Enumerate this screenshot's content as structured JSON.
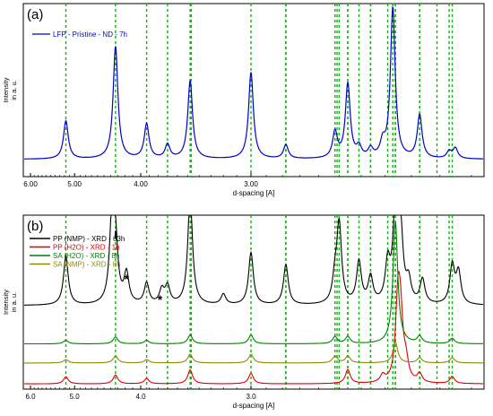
{
  "chart_data": [
    {
      "type": "line",
      "panel_label": "(a)",
      "xlabel": "d-spacing [A]",
      "ylabel_lines": [
        "Intensity",
        "in a. u."
      ],
      "x_ticks": [
        "6.00",
        "5.00",
        "4.00",
        "3.00"
      ],
      "x_tick_values": [
        6.0,
        5.0,
        4.0,
        3.0
      ],
      "scale": "reciprocal",
      "xlim": [
        6.0,
        2.0
      ],
      "ylim": [
        0,
        1
      ],
      "reference_lines": [
        5.17,
        4.33,
        3.93,
        3.7,
        3.48,
        3.47,
        3.0,
        2.78,
        2.78,
        2.52,
        2.51,
        2.5,
        2.46,
        2.46,
        2.41,
        2.36,
        2.36,
        2.29,
        2.27,
        2.26,
        2.26,
        2.17,
        2.17,
        2.11,
        2.07,
        2.06
      ],
      "baseline": 0.1,
      "peaks": [
        {
          "x": 5.17,
          "h": 0.22
        },
        {
          "x": 4.33,
          "h": 0.65
        },
        {
          "x": 3.93,
          "h": 0.2
        },
        {
          "x": 3.7,
          "h": 0.08
        },
        {
          "x": 3.48,
          "h": 0.45
        },
        {
          "x": 3.0,
          "h": 0.5
        },
        {
          "x": 2.78,
          "h": 0.08
        },
        {
          "x": 2.52,
          "h": 0.15
        },
        {
          "x": 2.46,
          "h": 0.43
        },
        {
          "x": 2.41,
          "h": 0.06
        },
        {
          "x": 2.36,
          "h": 0.05
        },
        {
          "x": 2.31,
          "h": 0.08
        },
        {
          "x": 2.27,
          "h": 0.87
        },
        {
          "x": 2.17,
          "h": 0.25
        },
        {
          "x": 2.07,
          "h": 0.04
        },
        {
          "x": 2.05,
          "h": 0.06
        }
      ],
      "series": [
        {
          "name": "LFP - Pristine - ND - 7h",
          "color": "#0000cc"
        }
      ]
    },
    {
      "type": "line",
      "panel_label": "(b)",
      "xlabel": "d-spacing [A]",
      "ylabel_lines": [
        "Intensity",
        "in a. u."
      ],
      "x_ticks": [
        "6.0",
        "5.0",
        "4.0",
        "3.0"
      ],
      "x_tick_values": [
        6.0,
        5.0,
        4.0,
        3.0
      ],
      "scale": "reciprocal",
      "xlim": [
        6.0,
        2.0
      ],
      "ylim": [
        0,
        1
      ],
      "reference_lines": [
        5.17,
        4.33,
        3.93,
        3.7,
        3.48,
        3.47,
        3.0,
        2.78,
        2.78,
        2.52,
        2.51,
        2.5,
        2.46,
        2.46,
        2.41,
        2.36,
        2.36,
        2.29,
        2.27,
        2.26,
        2.26,
        2.17,
        2.17,
        2.11,
        2.07,
        2.06
      ],
      "annotations": [
        {
          "text": "*",
          "x": 4.18
        },
        {
          "text": "*",
          "x": 3.78
        },
        {
          "text": "I",
          "x": 4.33
        }
      ],
      "series": [
        {
          "name": "PP (NMP) - XRD - 63h",
          "color": "#000000",
          "baseline": 0.48,
          "peaks": [
            {
              "x": 5.17,
              "h": 0.28
            },
            {
              "x": 4.38,
              "h": 0.5
            },
            {
              "x": 4.33,
              "h": 0.3
            },
            {
              "x": 4.18,
              "h": 0.17
            },
            {
              "x": 3.93,
              "h": 0.12
            },
            {
              "x": 3.76,
              "h": 0.08
            },
            {
              "x": 3.7,
              "h": 0.1
            },
            {
              "x": 3.48,
              "h": 0.62
            },
            {
              "x": 3.2,
              "h": 0.06
            },
            {
              "x": 3.0,
              "h": 0.3
            },
            {
              "x": 2.78,
              "h": 0.23
            },
            {
              "x": 2.52,
              "h": 0.13
            },
            {
              "x": 2.5,
              "h": 0.45
            },
            {
              "x": 2.41,
              "h": 0.24
            },
            {
              "x": 2.36,
              "h": 0.15
            },
            {
              "x": 2.29,
              "h": 0.22
            },
            {
              "x": 2.26,
              "h": 0.52
            },
            {
              "x": 2.24,
              "h": 0.4
            },
            {
              "x": 2.21,
              "h": 0.12
            },
            {
              "x": 2.16,
              "h": 0.14
            },
            {
              "x": 2.06,
              "h": 0.22
            },
            {
              "x": 2.04,
              "h": 0.18
            }
          ]
        },
        {
          "name": "PP (H2O) - XRD - 1h",
          "color": "#e00000",
          "baseline": 0.03,
          "peaks": [
            {
              "x": 5.17,
              "h": 0.04
            },
            {
              "x": 4.33,
              "h": 0.05
            },
            {
              "x": 3.93,
              "h": 0.03
            },
            {
              "x": 3.48,
              "h": 0.08
            },
            {
              "x": 3.0,
              "h": 0.06
            },
            {
              "x": 2.46,
              "h": 0.08
            },
            {
              "x": 2.31,
              "h": 0.04
            },
            {
              "x": 2.25,
              "h": 0.45
            },
            {
              "x": 2.24,
              "h": 0.3
            },
            {
              "x": 2.22,
              "h": 0.1
            },
            {
              "x": 2.17,
              "h": 0.05
            },
            {
              "x": 2.06,
              "h": 0.04
            }
          ]
        },
        {
          "name": "SA (H2O) - XRD - 8h",
          "color": "#008000",
          "baseline": 0.26,
          "peaks": [
            {
              "x": 5.17,
              "h": 0.02
            },
            {
              "x": 4.33,
              "h": 0.04
            },
            {
              "x": 3.93,
              "h": 0.02
            },
            {
              "x": 3.48,
              "h": 0.05
            },
            {
              "x": 3.0,
              "h": 0.05
            },
            {
              "x": 2.52,
              "h": 0.04
            },
            {
              "x": 2.46,
              "h": 0.04
            },
            {
              "x": 2.26,
              "h": 0.7
            },
            {
              "x": 2.17,
              "h": 0.04
            },
            {
              "x": 2.06,
              "h": 0.03
            }
          ]
        },
        {
          "name": "SA (NMP) - XRD - 8h",
          "color": "#8b8b00",
          "baseline": 0.15,
          "peaks": [
            {
              "x": 5.17,
              "h": 0.02
            },
            {
              "x": 4.33,
              "h": 0.04
            },
            {
              "x": 3.93,
              "h": 0.02
            },
            {
              "x": 3.48,
              "h": 0.05
            },
            {
              "x": 3.0,
              "h": 0.05
            },
            {
              "x": 2.52,
              "h": 0.04
            },
            {
              "x": 2.46,
              "h": 0.04
            },
            {
              "x": 2.26,
              "h": 0.12
            },
            {
              "x": 2.17,
              "h": 0.03
            },
            {
              "x": 2.06,
              "h": 0.03
            }
          ]
        }
      ]
    }
  ]
}
